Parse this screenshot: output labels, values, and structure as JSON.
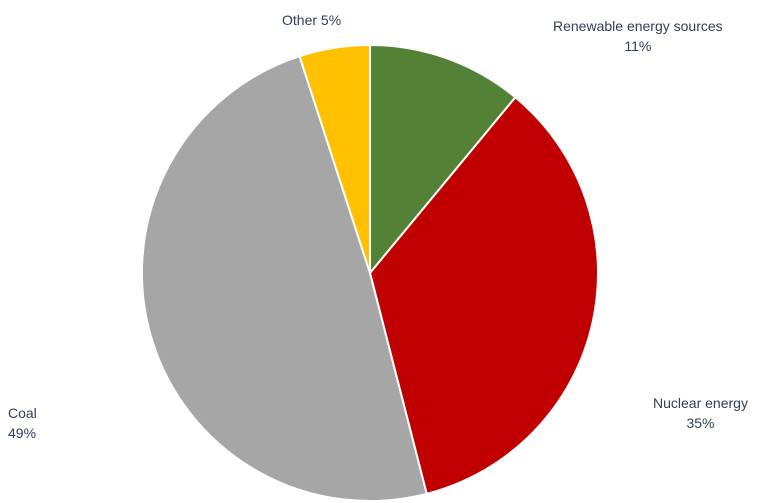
{
  "chart_data": {
    "type": "pie",
    "title": "",
    "slices": [
      {
        "label": "Renewable energy sources",
        "value": 11,
        "value_text": "11%",
        "color": "#538135"
      },
      {
        "label": "Nuclear energy",
        "value": 35,
        "value_text": "35%",
        "color": "#c00000"
      },
      {
        "label": "Coal",
        "value": 49,
        "value_text": "49%",
        "color": "#a6a6a6"
      },
      {
        "label": "Other",
        "value": 5,
        "value_text": "5%",
        "color": "#ffc000"
      }
    ],
    "start_angle": "12 o'clock",
    "direction": "clockwise",
    "legend": "none",
    "label_color": "#2e3f59",
    "slice_border_color": "#ffffff"
  },
  "labels": {
    "other": "Other 5%",
    "renewable_name": "Renewable energy sources",
    "renewable_value": "11%",
    "nuclear_name": "Nuclear energy",
    "nuclear_value": "35%",
    "coal_name": "Coal",
    "coal_value": "49%"
  }
}
